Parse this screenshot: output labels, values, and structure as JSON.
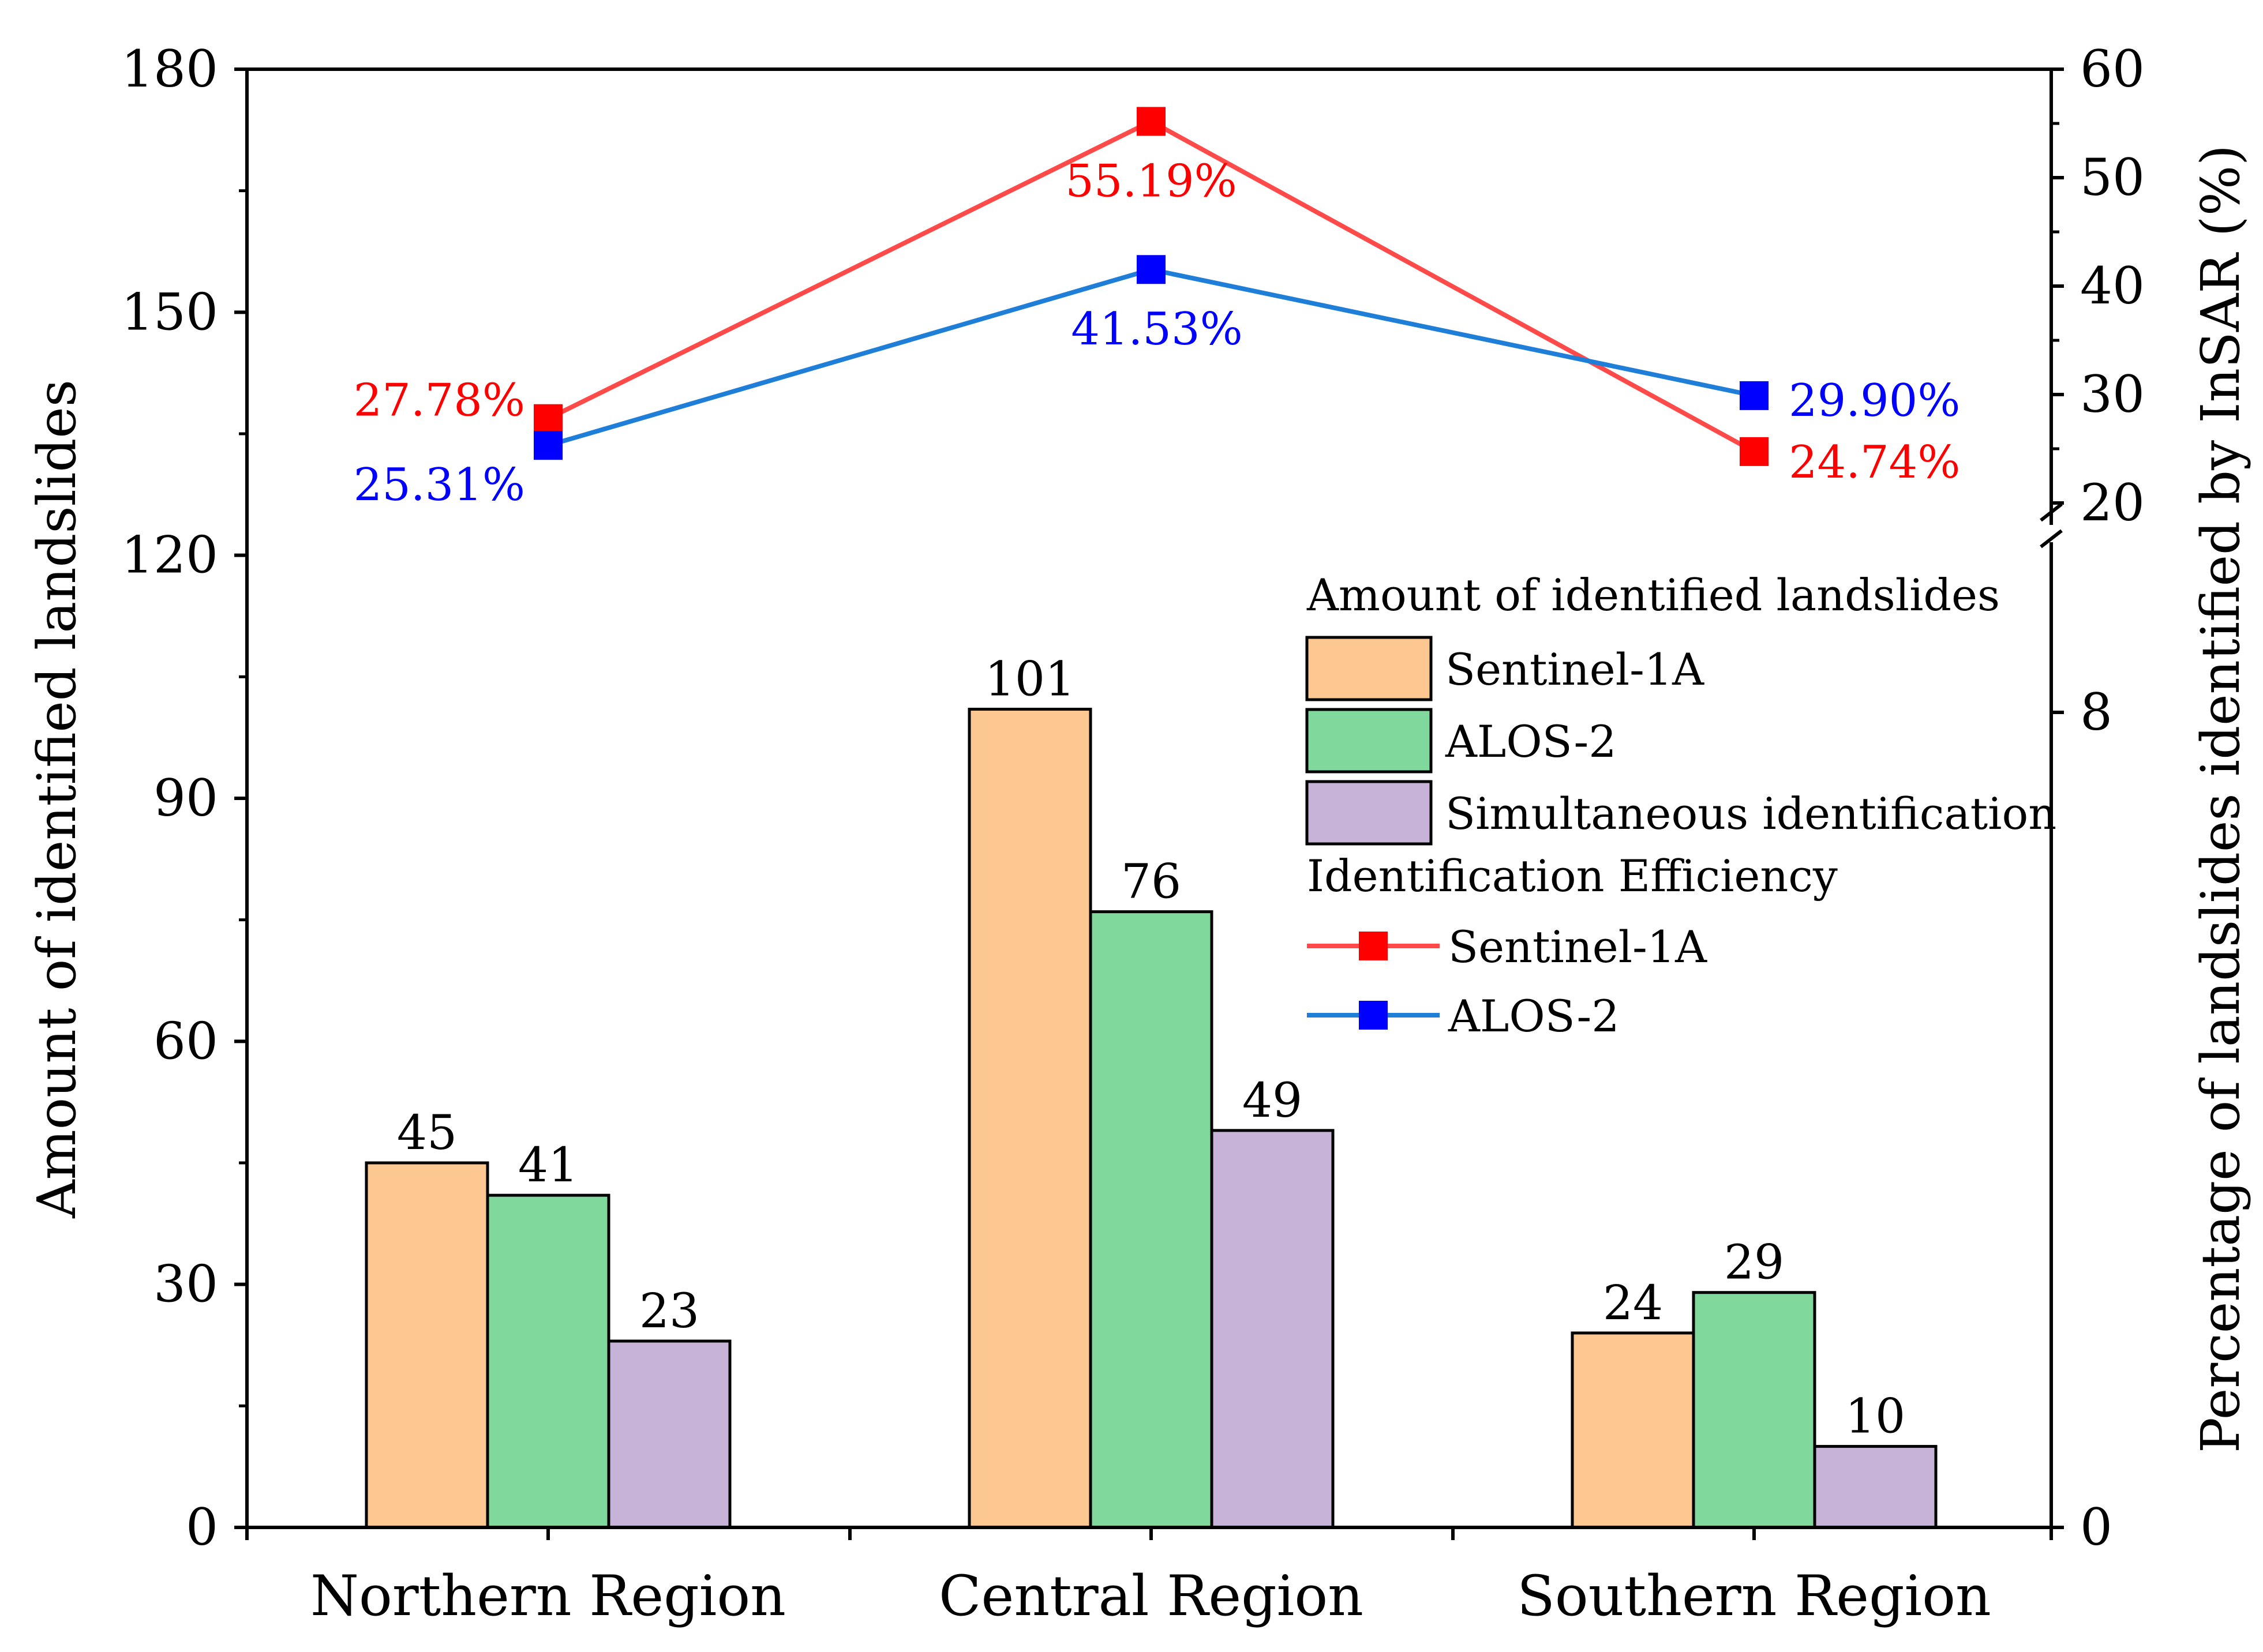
{
  "chart_data": {
    "type": "bar+line",
    "categories": [
      "Northern Region",
      "Central Region",
      "Southern Region"
    ],
    "bar_axis": {
      "label": "Amount of identified landslides",
      "ylim": [
        0,
        180
      ],
      "ticks": [
        "0",
        "30",
        "60",
        "90",
        "120",
        "150",
        "180"
      ]
    },
    "line_axis": {
      "label": "Percentage of landslides identified by InSAR (%)",
      "lower_ticks": [
        "0",
        "8"
      ],
      "upper_ticks": [
        "20",
        "30",
        "40",
        "50",
        "60"
      ],
      "break": "between 8 and 20"
    },
    "bar_series": [
      {
        "name": "Sentinel-1A",
        "values": [
          45,
          101,
          24
        ],
        "labels": [
          "45",
          "101",
          "24"
        ],
        "color": "#FDC792"
      },
      {
        "name": "ALOS-2",
        "values": [
          41,
          76,
          29
        ],
        "labels": [
          "41",
          "76",
          "29"
        ],
        "color": "#80D89D"
      },
      {
        "name": "Simultaneous identification",
        "values": [
          23,
          49,
          10
        ],
        "labels": [
          "23",
          "49",
          "10"
        ],
        "color": "#C7B3D8"
      }
    ],
    "line_series": [
      {
        "name": "Sentinel-1A",
        "values": [
          27.78,
          55.19,
          24.74
        ],
        "labels": [
          "27.78%",
          "55.19%",
          "24.74%"
        ],
        "color": "#FF4A4A",
        "marker_color": "#FF0000"
      },
      {
        "name": "ALOS-2",
        "values": [
          25.31,
          41.53,
          29.9
        ],
        "labels": [
          "25.31%",
          "41.53%",
          "29.90%"
        ],
        "color": "#1F7FD8",
        "marker_color": "#0000FF"
      }
    ],
    "legend": {
      "bar_title": "Amount of identified landslides",
      "line_title": "Identification Efficiency",
      "placement": "center-right"
    }
  }
}
